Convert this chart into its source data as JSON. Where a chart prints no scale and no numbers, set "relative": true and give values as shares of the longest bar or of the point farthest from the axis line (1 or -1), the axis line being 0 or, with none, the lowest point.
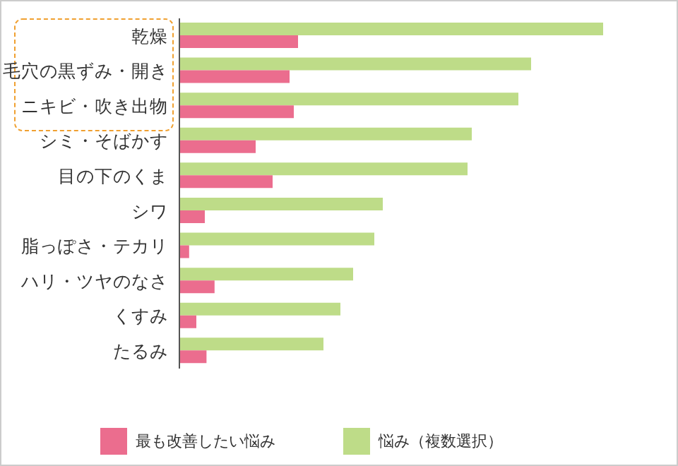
{
  "chart_data": {
    "type": "bar",
    "orientation": "horizontal",
    "relative": true,
    "categories": [
      "乾燥",
      "毛穴の黒ずみ・開き",
      "ニキビ・吹き出物",
      "シミ・そばかす",
      "目の下のくま",
      "シワ",
      "脂っぽさ・テカリ",
      "ハリ・ツヤのなさ",
      "くすみ",
      "たるみ"
    ],
    "series": [
      {
        "name": "悩み（複数選択）",
        "color": "#bedc88",
        "values": [
          1,
          0.83,
          0.8,
          0.69,
          0.68,
          0.48,
          0.46,
          0.41,
          0.38,
          0.34
        ]
      },
      {
        "name": "最も改善したい悩み",
        "color": "#eb6d8e",
        "values": [
          0.28,
          0.26,
          0.27,
          0.18,
          0.22,
          0.06,
          0.023,
          0.083,
          0.04,
          0.064
        ]
      }
    ],
    "legend": "bottom",
    "grid": false
  }
}
